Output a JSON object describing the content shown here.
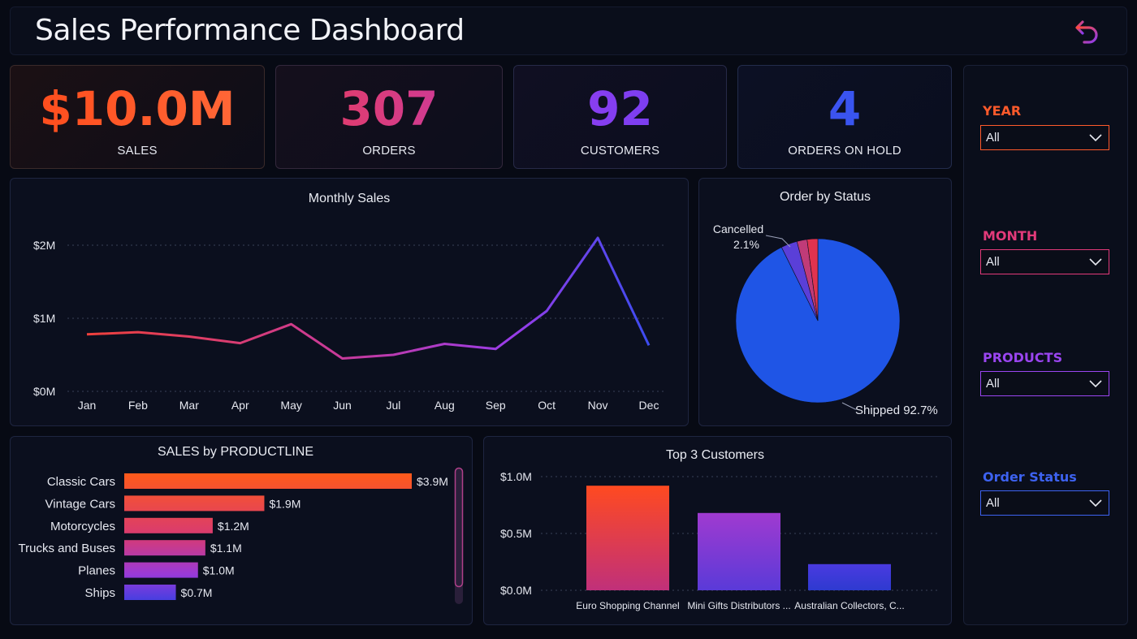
{
  "header": {
    "title": "Sales Performance Dashboard",
    "back_icon": "undo-arrow-icon"
  },
  "kpis": [
    {
      "value": "$10.0M",
      "label": "SALES",
      "color": "#ff5a2b"
    },
    {
      "value": "307",
      "label": "ORDERS",
      "color": "#e23a7a"
    },
    {
      "value": "92",
      "label": "CUSTOMERS",
      "color": "#8a3cf0"
    },
    {
      "value": "4",
      "label": "ORDERS ON HOLD",
      "color": "#3d52f0"
    }
  ],
  "filters": [
    {
      "label": "YEAR",
      "value": "All",
      "color": "#ff5a2b"
    },
    {
      "label": "MONTH",
      "value": "All",
      "color": "#e23a7a"
    },
    {
      "label": "PRODUCTS",
      "value": "All",
      "color": "#9a45f0"
    },
    {
      "label": "Order Status",
      "value": "All",
      "color": "#3d62f0"
    }
  ],
  "chart_data": [
    {
      "type": "line",
      "title": "Monthly Sales",
      "categories": [
        "Jan",
        "Feb",
        "Mar",
        "Apr",
        "May",
        "Jun",
        "Jul",
        "Aug",
        "Sep",
        "Oct",
        "Nov",
        "Dec"
      ],
      "values": [
        0.78,
        0.81,
        0.75,
        0.66,
        0.92,
        0.45,
        0.5,
        0.65,
        0.58,
        1.1,
        2.1,
        0.63
      ],
      "yticks": [
        "$0M",
        "$1M",
        "$2M"
      ],
      "ylim": [
        0,
        2.2
      ],
      "grid": true
    },
    {
      "type": "pie",
      "title": "Order by Status",
      "slices": [
        {
          "value": 92.7,
          "label": "Shipped 92.7%",
          "color": "#1f55e6"
        },
        {
          "value": 3.2,
          "label": "",
          "color": "#5a3fd8"
        },
        {
          "value": 2.0,
          "label": "",
          "color": "#c03b78"
        },
        {
          "value": 2.1,
          "label": "Cancelled 2.1%",
          "color": "#e0334f"
        }
      ],
      "labels": {
        "cancelled_name": "Cancelled",
        "cancelled_pct": "2.1%",
        "shipped": "Shipped 92.7%"
      }
    },
    {
      "type": "bar",
      "orientation": "horizontal",
      "title": "SALES by PRODUCTLINE",
      "categories": [
        "Classic Cars",
        "Vintage Cars",
        "Motorcycles",
        "Trucks and Buses",
        "Planes",
        "Ships"
      ],
      "values": [
        3.9,
        1.9,
        1.2,
        1.1,
        1.0,
        0.7
      ],
      "value_labels": [
        "$3.9M",
        "$1.9M",
        "$1.2M",
        "$1.1M",
        "$1.0M",
        "$0.7M"
      ]
    },
    {
      "type": "bar",
      "title": "Top 3 Customers",
      "categories": [
        "Euro Shopping Channel",
        "Mini Gifts Distributors ...",
        "Australian Collectors, C..."
      ],
      "values": [
        0.92,
        0.68,
        0.23
      ],
      "yticks": [
        "$0.0M",
        "$0.5M",
        "$1.0M"
      ],
      "ylim": [
        0,
        1.0
      ],
      "grid": true
    }
  ]
}
